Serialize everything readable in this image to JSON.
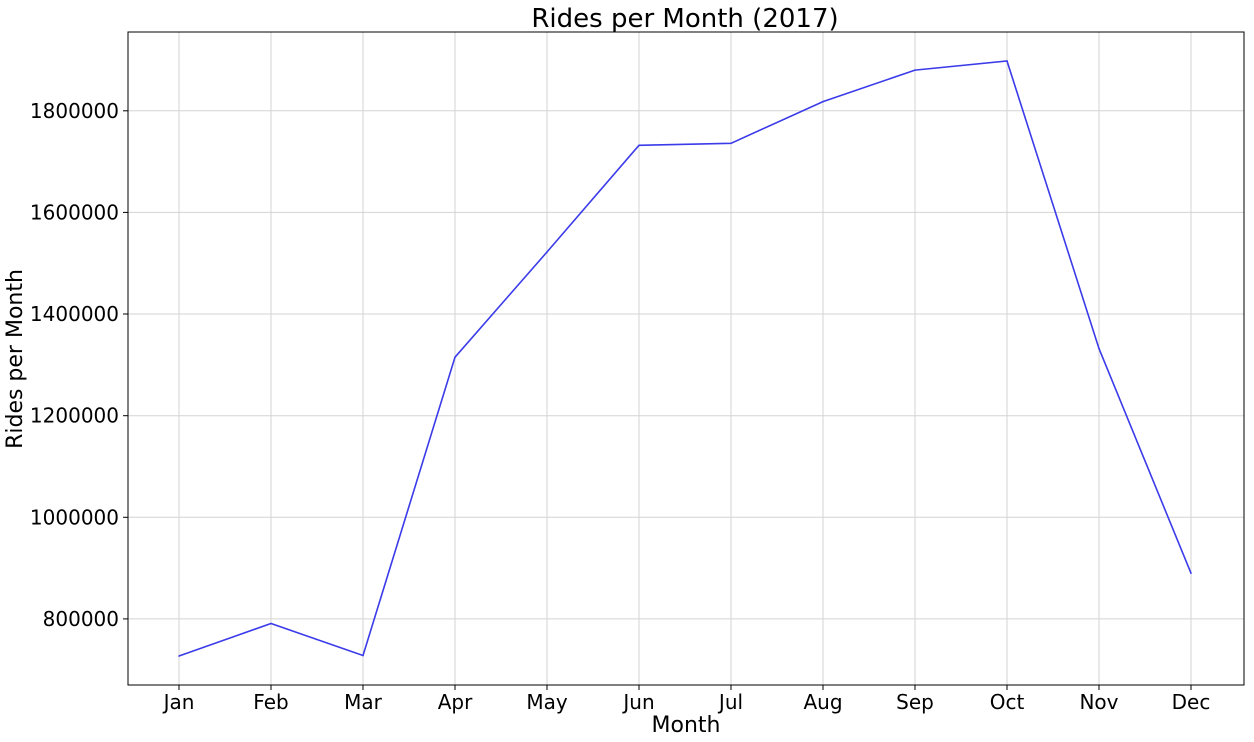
{
  "chart_data": {
    "type": "line",
    "title": "Rides per Month (2017)",
    "xlabel": "Month",
    "ylabel": "Rides per Month",
    "categories": [
      "Jan",
      "Feb",
      "Mar",
      "Apr",
      "May",
      "Jun",
      "Jul",
      "Aug",
      "Sep",
      "Oct",
      "Nov",
      "Dec"
    ],
    "series": [
      {
        "values": [
          727000,
          791000,
          728000,
          1315000,
          1522000,
          1732000,
          1736000,
          1818000,
          1880000,
          1898000,
          1332000,
          890000
        ],
        "color": "#3b3bea"
      }
    ],
    "yticks": [
      800000,
      1000000,
      1200000,
      1400000,
      1600000,
      1800000
    ],
    "ylim": [
      670000,
      1955000
    ],
    "grid": true,
    "legend": "none"
  }
}
